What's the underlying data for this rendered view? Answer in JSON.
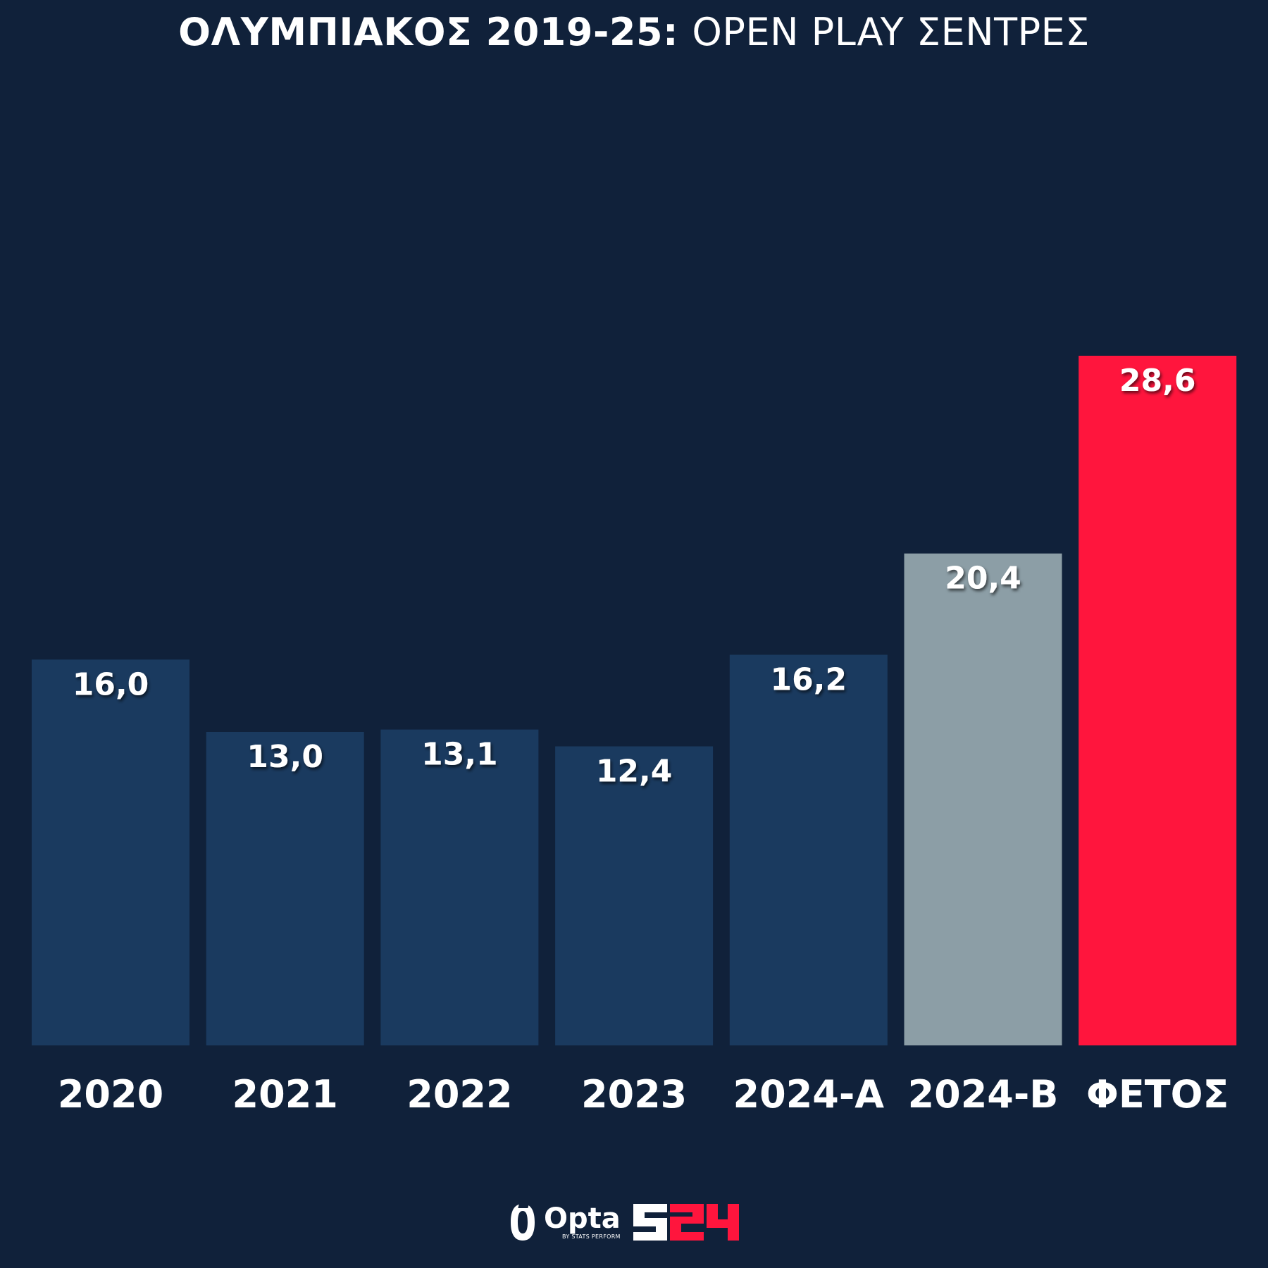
{
  "title": {
    "bold": "ΟΛΥΜΠΙΑΚΟΣ 2019-25:",
    "light": "OPEN PLAY ΣΕΝΤΡΕΣ"
  },
  "chart_data": {
    "type": "bar",
    "title": "ΟΛΥΜΠΙΑΚΟΣ 2019-25: OPEN PLAY ΣΕΝΤΡΕΣ",
    "categories": [
      "2020",
      "2021",
      "2022",
      "2023",
      "2024-A",
      "2024-B",
      "ΦΕΤΟΣ"
    ],
    "values": [
      16.0,
      13.0,
      13.1,
      12.4,
      16.2,
      20.4,
      28.6
    ],
    "value_labels": [
      "16,0",
      "13,0",
      "13,1",
      "12,4",
      "16,2",
      "20,4",
      "28,6"
    ],
    "bar_colors": [
      "#1a3a5f",
      "#1a3a5f",
      "#1a3a5f",
      "#1a3a5f",
      "#1a3a5f",
      "#8c9ea6",
      "#ff153d"
    ],
    "ylim": [
      0,
      28.6
    ],
    "grid": false,
    "xlabel": "",
    "ylabel": ""
  },
  "footer": {
    "opta_name": "Opta",
    "opta_sub": "BY STATS PERFORM",
    "brand_logo_text": "S24",
    "brand_colors": {
      "white": "#ffffff",
      "red": "#ff153d"
    }
  },
  "colors": {
    "background": "#10213a",
    "text": "#ffffff"
  }
}
